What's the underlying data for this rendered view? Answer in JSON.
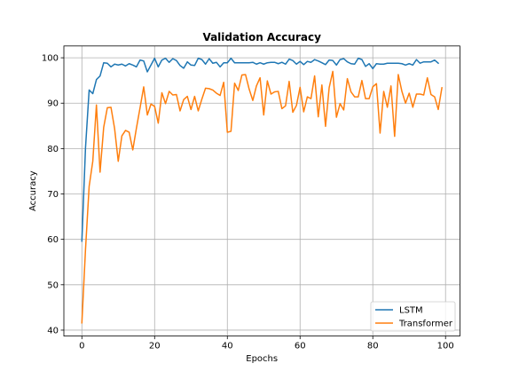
{
  "chart_data": {
    "type": "line",
    "title": "Validation Accuracy",
    "xlabel": "Epochs",
    "ylabel": "Accuracy",
    "xlim": [
      -4.95,
      103.95
    ],
    "ylim": [
      38.7,
      102.6
    ],
    "xticks": [
      0,
      20,
      40,
      60,
      80,
      100
    ],
    "yticks": [
      40,
      50,
      60,
      70,
      80,
      90,
      100
    ],
    "grid": true,
    "legend_position": "lower right",
    "series": [
      {
        "name": "LSTM",
        "color": "#1f77b4",
        "x": [
          0,
          1,
          2,
          3,
          4,
          5,
          6,
          7,
          8,
          9,
          10,
          11,
          12,
          13,
          14,
          15,
          16,
          17,
          18,
          19,
          20,
          21,
          22,
          23,
          24,
          25,
          26,
          27,
          28,
          29,
          30,
          31,
          32,
          33,
          34,
          35,
          36,
          37,
          38,
          39,
          40,
          41,
          42,
          43,
          44,
          45,
          46,
          47,
          48,
          49,
          50,
          51,
          52,
          53,
          54,
          55,
          56,
          57,
          58,
          59,
          60,
          61,
          62,
          63,
          64,
          65,
          66,
          67,
          68,
          69,
          70,
          71,
          72,
          73,
          74,
          75,
          76,
          77,
          78,
          79,
          80,
          81,
          82,
          83,
          84,
          85,
          86,
          87,
          88,
          89,
          90,
          91,
          92,
          93,
          94,
          95,
          96,
          97,
          98,
          99
        ],
        "values": [
          59.6,
          80.2,
          92.9,
          92.1,
          95.2,
          96.0,
          98.9,
          98.8,
          98.0,
          98.6,
          98.4,
          98.6,
          98.2,
          98.7,
          98.4,
          98.0,
          99.5,
          99.3,
          96.9,
          98.4,
          99.9,
          98.0,
          99.5,
          99.9,
          99.0,
          99.8,
          99.4,
          98.3,
          97.7,
          99.1,
          98.4,
          98.3,
          99.9,
          99.6,
          98.6,
          99.8,
          98.8,
          99.0,
          98.0,
          98.9,
          98.9,
          99.9,
          98.9,
          98.9,
          98.9,
          98.9,
          98.9,
          99.0,
          98.6,
          98.9,
          98.6,
          98.9,
          99.0,
          99.0,
          98.7,
          99.0,
          98.6,
          99.7,
          99.4,
          98.6,
          99.2,
          98.5,
          99.2,
          99.0,
          99.6,
          99.3,
          98.9,
          98.5,
          99.5,
          99.4,
          98.4,
          99.6,
          99.8,
          99.1,
          98.7,
          98.6,
          99.9,
          99.6,
          98.1,
          98.7,
          97.6,
          98.7,
          98.6,
          98.6,
          98.8,
          98.8,
          98.8,
          98.8,
          98.7,
          98.4,
          98.7,
          98.4,
          99.6,
          98.8,
          99.1,
          99.1,
          99.1,
          99.5,
          98.8,
          null
        ]
      },
      {
        "name": "Transformer",
        "color": "#ff7f0e",
        "x": [
          0,
          1,
          2,
          3,
          4,
          5,
          6,
          7,
          8,
          9,
          10,
          11,
          12,
          13,
          14,
          15,
          16,
          17,
          18,
          19,
          20,
          21,
          22,
          23,
          24,
          25,
          26,
          27,
          28,
          29,
          30,
          31,
          32,
          33,
          34,
          35,
          36,
          37,
          38,
          39,
          40,
          41,
          42,
          43,
          44,
          45,
          46,
          47,
          48,
          49,
          50,
          51,
          52,
          53,
          54,
          55,
          56,
          57,
          58,
          59,
          60,
          61,
          62,
          63,
          64,
          65,
          66,
          67,
          68,
          69,
          70,
          71,
          72,
          73,
          74,
          75,
          76,
          77,
          78,
          79,
          80,
          81,
          82,
          83,
          84,
          85,
          86,
          87,
          88,
          89,
          90,
          91,
          92,
          93,
          94,
          95,
          96,
          97,
          98,
          99
        ],
        "values": [
          41.6,
          57.8,
          71.7,
          77.2,
          89.6,
          74.8,
          84.7,
          89.0,
          89.1,
          84.4,
          77.2,
          82.8,
          84.0,
          83.6,
          79.7,
          84.5,
          89.0,
          93.6,
          87.4,
          89.8,
          89.3,
          85.6,
          92.3,
          89.9,
          92.6,
          91.8,
          91.9,
          88.3,
          90.8,
          91.5,
          88.6,
          91.5,
          88.3,
          90.9,
          93.3,
          93.2,
          92.9,
          92.2,
          91.7,
          94.6,
          83.6,
          83.8,
          94.4,
          92.8,
          96.2,
          96.3,
          93.1,
          90.6,
          93.8,
          95.6,
          87.4,
          94.9,
          92.0,
          92.5,
          92.6,
          88.8,
          89.4,
          94.8,
          88.0,
          89.5,
          93.5,
          88.1,
          91.4,
          91.0,
          96.0,
          87.0,
          94.0,
          84.9,
          93.4,
          97.0,
          86.9,
          89.9,
          88.5,
          95.4,
          92.5,
          91.4,
          91.4,
          95.0,
          91.0,
          91.0,
          93.6,
          94.3,
          83.4,
          92.6,
          89.1,
          93.8,
          82.7,
          96.3,
          92.6,
          90.0,
          92.2,
          89.1,
          92.0,
          92.0,
          91.8,
          95.6,
          91.9,
          91.4,
          88.6,
          93.4
        ]
      }
    ]
  }
}
